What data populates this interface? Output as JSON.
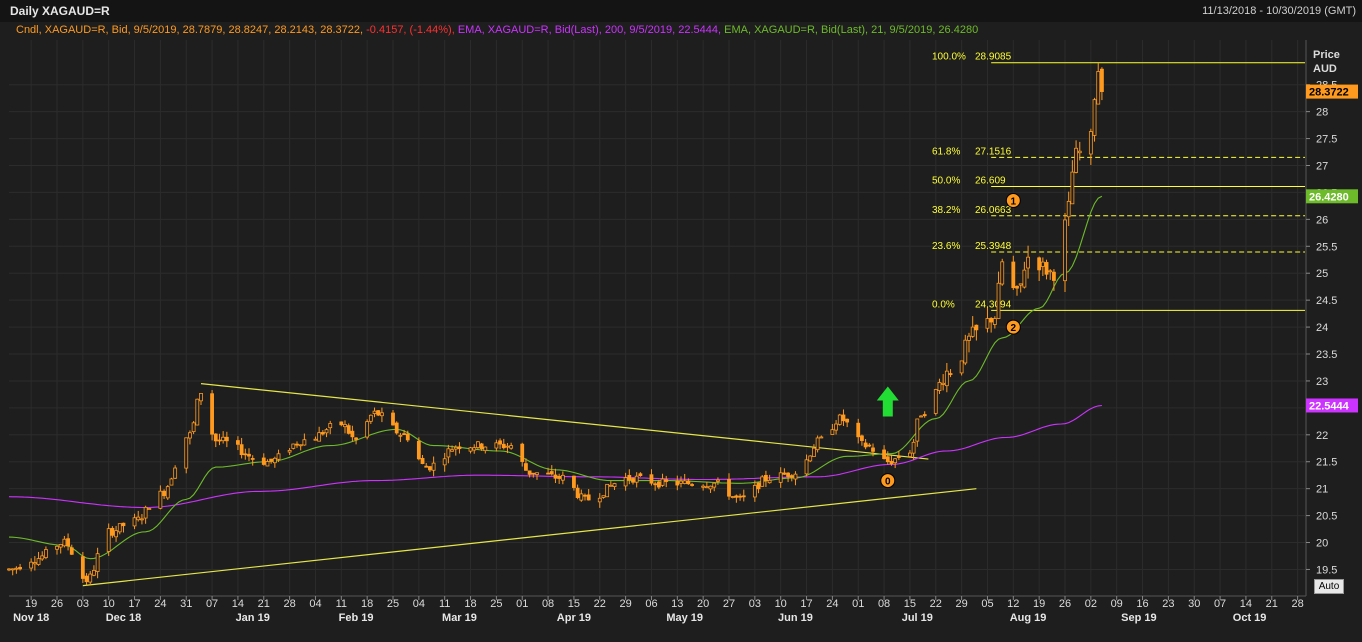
{
  "header": {
    "title": "Daily XAGAUD=R",
    "date_range": "11/13/2018 - 10/30/2019 (GMT)"
  },
  "info": {
    "candle_label": "Cndl, XAGAUD=R, Bid, 9/5/2019, 28.7879, 28.8247, 28.2143, 28.3722,",
    "candle_change": "-0.4157, (-1.44%),",
    "ema200_label": "EMA, XAGAUD=R, Bid(Last),  200, 9/5/2019, 22.5444,",
    "ema21_label": "EMA, XAGAUD=R, Bid(Last),  21, 9/5/2019, 26.4280"
  },
  "axis": {
    "price_title": "Price",
    "currency": "AUD",
    "auto_label": "Auto"
  },
  "colors": {
    "candle": "#ff9a1f",
    "ema200": "#cc33ff",
    "ema21": "#6dbb2a",
    "fib": "#ffff33",
    "trendline": "#e6e64a",
    "arrow": "#22dd33",
    "badge": "#ff9a1f",
    "down_change": "#ff3030",
    "background": "#1e1e1e",
    "grid": "#2c2c2c"
  },
  "chart_data": {
    "type": "candlestick",
    "symbol": "XAGAUD=R",
    "interval": "Daily",
    "ylim": [
      19.1,
      29.2
    ],
    "y_ticks": [
      19.5,
      20,
      20.5,
      21,
      21.5,
      22,
      22.5,
      23,
      23.5,
      24,
      24.5,
      25,
      25.5,
      26,
      26.5,
      27,
      27.5,
      28,
      28.5
    ],
    "y_tick_labels": [
      "19.5",
      "20",
      "20.5",
      "21",
      "21.5",
      "22",
      "22.5",
      "23",
      "23.5",
      "24",
      "24.5",
      "25",
      "25.5",
      "26",
      "26.5",
      "27",
      "27.5",
      "28",
      "28.5"
    ],
    "x_ticks": [
      {
        "day": "19",
        "date": "2018-11-19"
      },
      {
        "day": "26",
        "date": "2018-11-26"
      },
      {
        "day": "03",
        "date": "2018-12-03"
      },
      {
        "day": "10",
        "date": "2018-12-10"
      },
      {
        "day": "17",
        "date": "2018-12-17"
      },
      {
        "day": "24",
        "date": "2018-12-24"
      },
      {
        "day": "31",
        "date": "2018-12-31"
      },
      {
        "day": "07",
        "date": "2019-01-07"
      },
      {
        "day": "14",
        "date": "2019-01-14"
      },
      {
        "day": "21",
        "date": "2019-01-21"
      },
      {
        "day": "28",
        "date": "2019-01-28"
      },
      {
        "day": "04",
        "date": "2019-02-04"
      },
      {
        "day": "11",
        "date": "2019-02-11"
      },
      {
        "day": "18",
        "date": "2019-02-18"
      },
      {
        "day": "25",
        "date": "2019-02-25"
      },
      {
        "day": "04",
        "date": "2019-03-04"
      },
      {
        "day": "11",
        "date": "2019-03-11"
      },
      {
        "day": "18",
        "date": "2019-03-18"
      },
      {
        "day": "25",
        "date": "2019-03-25"
      },
      {
        "day": "01",
        "date": "2019-04-01"
      },
      {
        "day": "08",
        "date": "2019-04-08"
      },
      {
        "day": "15",
        "date": "2019-04-15"
      },
      {
        "day": "22",
        "date": "2019-04-22"
      },
      {
        "day": "29",
        "date": "2019-04-29"
      },
      {
        "day": "06",
        "date": "2019-05-06"
      },
      {
        "day": "13",
        "date": "2019-05-13"
      },
      {
        "day": "20",
        "date": "2019-05-20"
      },
      {
        "day": "27",
        "date": "2019-05-27"
      },
      {
        "day": "03",
        "date": "2019-06-03"
      },
      {
        "day": "10",
        "date": "2019-06-10"
      },
      {
        "day": "17",
        "date": "2019-06-17"
      },
      {
        "day": "24",
        "date": "2019-06-24"
      },
      {
        "day": "01",
        "date": "2019-07-01"
      },
      {
        "day": "08",
        "date": "2019-07-08"
      },
      {
        "day": "15",
        "date": "2019-07-15"
      },
      {
        "day": "22",
        "date": "2019-07-22"
      },
      {
        "day": "29",
        "date": "2019-07-29"
      },
      {
        "day": "05",
        "date": "2019-08-05"
      },
      {
        "day": "12",
        "date": "2019-08-12"
      },
      {
        "day": "19",
        "date": "2019-08-19"
      },
      {
        "day": "26",
        "date": "2019-08-26"
      },
      {
        "day": "02",
        "date": "2019-09-02"
      },
      {
        "day": "09",
        "date": "2019-09-09"
      },
      {
        "day": "16",
        "date": "2019-09-16"
      },
      {
        "day": "23",
        "date": "2019-09-23"
      },
      {
        "day": "30",
        "date": "2019-09-30"
      },
      {
        "day": "07",
        "date": "2019-10-07"
      },
      {
        "day": "14",
        "date": "2019-10-14"
      },
      {
        "day": "21",
        "date": "2019-10-21"
      },
      {
        "day": "28",
        "date": "2019-10-28"
      }
    ],
    "month_labels": [
      {
        "label": "Nov 18",
        "date": "2018-11-19"
      },
      {
        "label": "Dec 18",
        "date": "2018-12-14"
      },
      {
        "label": "Jan 19",
        "date": "2019-01-18"
      },
      {
        "label": "Feb 19",
        "date": "2019-02-15"
      },
      {
        "label": "Mar 19",
        "date": "2019-03-15"
      },
      {
        "label": "Apr 19",
        "date": "2019-04-15"
      },
      {
        "label": "May 19",
        "date": "2019-05-15"
      },
      {
        "label": "Jun 19",
        "date": "2019-06-14"
      },
      {
        "label": "Jul 19",
        "date": "2019-07-17"
      },
      {
        "label": "Aug 19",
        "date": "2019-08-16"
      },
      {
        "label": "Sep 19",
        "date": "2019-09-15"
      },
      {
        "label": "Oct 19",
        "date": "2019-10-15"
      }
    ],
    "price_keypoints": [
      [
        "2018-11-13",
        19.5
      ],
      [
        "2018-11-20",
        19.7
      ],
      [
        "2018-11-28",
        20.0
      ],
      [
        "2018-12-04",
        19.3
      ],
      [
        "2018-12-10",
        20.2
      ],
      [
        "2018-12-17",
        20.4
      ],
      [
        "2018-12-24",
        20.9
      ],
      [
        "2019-01-01",
        22.0
      ],
      [
        "2019-01-04",
        22.8
      ],
      [
        "2019-01-08",
        21.9
      ],
      [
        "2019-01-22",
        21.5
      ],
      [
        "2019-02-01",
        21.9
      ],
      [
        "2019-02-11",
        22.2
      ],
      [
        "2019-02-15",
        21.9
      ],
      [
        "2019-02-20",
        22.4
      ],
      [
        "2019-02-28",
        22.0
      ],
      [
        "2019-03-06",
        21.4
      ],
      [
        "2019-03-15",
        21.8
      ],
      [
        "2019-03-29",
        21.8
      ],
      [
        "2019-04-03",
        21.3
      ],
      [
        "2019-04-12",
        21.2
      ],
      [
        "2019-04-18",
        20.8
      ],
      [
        "2019-04-30",
        21.2
      ],
      [
        "2019-05-10",
        21.1
      ],
      [
        "2019-05-23",
        21.1
      ],
      [
        "2019-05-30",
        20.8
      ],
      [
        "2019-06-07",
        21.2
      ],
      [
        "2019-06-14",
        21.3
      ],
      [
        "2019-06-21",
        21.9
      ],
      [
        "2019-06-26",
        22.3
      ],
      [
        "2019-07-03",
        21.8
      ],
      [
        "2019-07-09",
        21.5
      ],
      [
        "2019-07-15",
        21.7
      ],
      [
        "2019-07-18",
        22.4
      ],
      [
        "2019-07-26",
        23.2
      ],
      [
        "2019-08-02",
        23.9
      ],
      [
        "2019-08-07",
        24.2
      ],
      [
        "2019-08-09",
        25.2
      ],
      [
        "2019-08-13",
        24.6
      ],
      [
        "2019-08-16",
        25.3
      ],
      [
        "2019-08-23",
        25.0
      ],
      [
        "2019-08-26",
        25.9
      ],
      [
        "2019-08-29",
        27.2
      ],
      [
        "2019-09-02",
        27.5
      ],
      [
        "2019-09-03",
        28.3
      ],
      [
        "2019-09-04",
        28.79
      ],
      [
        "2019-09-05",
        28.3722
      ]
    ],
    "last_candle": {
      "date": "2019-09-05",
      "open": 28.7879,
      "high": 28.8247,
      "low": 28.2143,
      "close": 28.3722,
      "change": -0.4157,
      "change_pct": -1.44
    },
    "series": [
      {
        "name": "EMA 200",
        "last_value": 22.5444,
        "points": [
          [
            "2018-11-13",
            20.85
          ],
          [
            "2018-12-20",
            20.65
          ],
          [
            "2019-01-20",
            20.95
          ],
          [
            "2019-02-20",
            21.15
          ],
          [
            "2019-03-20",
            21.25
          ],
          [
            "2019-04-20",
            21.22
          ],
          [
            "2019-05-20",
            21.17
          ],
          [
            "2019-06-20",
            21.22
          ],
          [
            "2019-07-10",
            21.45
          ],
          [
            "2019-07-25",
            21.7
          ],
          [
            "2019-08-10",
            21.95
          ],
          [
            "2019-08-25",
            22.2
          ],
          [
            "2019-09-05",
            22.5444
          ]
        ]
      },
      {
        "name": "EMA 21",
        "last_value": 26.428,
        "points": [
          [
            "2018-11-13",
            20.1
          ],
          [
            "2018-11-28",
            19.95
          ],
          [
            "2018-12-05",
            19.7
          ],
          [
            "2018-12-20",
            20.2
          ],
          [
            "2018-12-31",
            20.8
          ],
          [
            "2019-01-08",
            21.4
          ],
          [
            "2019-01-22",
            21.5
          ],
          [
            "2019-02-08",
            21.8
          ],
          [
            "2019-02-26",
            22.1
          ],
          [
            "2019-03-08",
            21.8
          ],
          [
            "2019-03-26",
            21.7
          ],
          [
            "2019-04-10",
            21.35
          ],
          [
            "2019-04-25",
            21.15
          ],
          [
            "2019-05-10",
            21.15
          ],
          [
            "2019-05-30",
            21.1
          ],
          [
            "2019-06-14",
            21.2
          ],
          [
            "2019-06-28",
            21.6
          ],
          [
            "2019-07-10",
            21.65
          ],
          [
            "2019-07-22",
            22.3
          ],
          [
            "2019-07-31",
            23.0
          ],
          [
            "2019-08-09",
            23.8
          ],
          [
            "2019-08-19",
            24.35
          ],
          [
            "2019-08-26",
            25.0
          ],
          [
            "2019-09-05",
            26.428
          ]
        ]
      }
    ],
    "fibonacci": [
      {
        "level": "100.0%",
        "value": 28.9085,
        "label": "28.9085",
        "style": "solid"
      },
      {
        "level": "61.8%",
        "value": 27.1516,
        "label": "27.1516",
        "style": "dashed"
      },
      {
        "level": "50.0%",
        "value": 26.6095,
        "label": "26.609",
        "style": "solid"
      },
      {
        "level": "38.2%",
        "value": 26.0663,
        "label": "26.0663",
        "style": "dashed"
      },
      {
        "level": "23.6%",
        "value": 25.3948,
        "label": "25.3948",
        "style": "dashed"
      },
      {
        "level": "0.0%",
        "value": 24.3094,
        "label": "24.3094",
        "style": "solid"
      }
    ],
    "trendlines": [
      {
        "from": [
          "2019-01-04",
          22.95
        ],
        "to": [
          "2019-07-20",
          21.55
        ]
      },
      {
        "from": [
          "2018-12-03",
          19.2
        ],
        "to": [
          "2019-08-02",
          21.0
        ]
      }
    ],
    "annotations": [
      {
        "type": "badge",
        "text": "0",
        "date": "2019-07-09",
        "price": 21.15
      },
      {
        "type": "badge",
        "text": "1",
        "date": "2019-08-12",
        "price": 26.35
      },
      {
        "type": "badge",
        "text": "2",
        "date": "2019-08-12",
        "price": 24.0
      },
      {
        "type": "up-arrow",
        "date": "2019-07-09",
        "price": 22.6
      }
    ],
    "price_tags": [
      {
        "value": 28.3722,
        "label": "28.3722",
        "color": "#ff9a1f"
      },
      {
        "value": 26.428,
        "label": "26.4280",
        "color": "#6dbb2a"
      },
      {
        "value": 22.5444,
        "label": "22.5444",
        "color": "#cc33ff"
      }
    ]
  }
}
